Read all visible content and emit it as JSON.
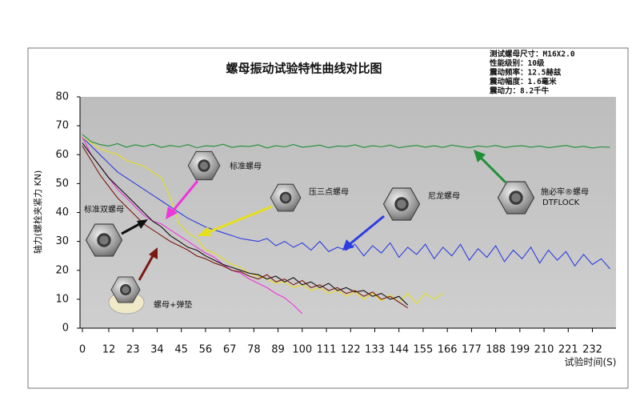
{
  "chart_data": {
    "type": "line",
    "title": "螺母振动试验特性曲线对比图",
    "ylabel": "轴力(螺栓夹紧力 KN)",
    "xlabel": "试验时间(S)",
    "info": [
      "测试螺母尺寸：M16X2.0",
      "性能级别：10级",
      "震动频率：12.5赫兹",
      "震动幅度：1.6毫米",
      "震动力：8.2千牛"
    ],
    "extra_label": "DTFLOCK",
    "xlim": [
      0,
      242
    ],
    "ylim": [
      0,
      80
    ],
    "xticks": [
      0,
      12,
      23,
      34,
      45,
      56,
      67,
      78,
      89,
      100,
      111,
      122,
      133,
      144,
      155,
      166,
      177,
      188,
      199,
      210,
      221,
      232
    ],
    "yticks": [
      0,
      10,
      20,
      30,
      40,
      50,
      60,
      70,
      80
    ],
    "grid": false,
    "series": [
      {
        "name": "施必牢®螺母",
        "color": "#1f8f35",
        "x": [
          0,
          4,
          8,
          12,
          16,
          20,
          24,
          28,
          32,
          36,
          40,
          44,
          48,
          52,
          56,
          60,
          64,
          68,
          72,
          76,
          80,
          84,
          88,
          92,
          96,
          100,
          104,
          108,
          112,
          116,
          120,
          124,
          128,
          132,
          136,
          140,
          144,
          148,
          152,
          156,
          160,
          164,
          168,
          172,
          176,
          180,
          184,
          188,
          192,
          196,
          200,
          204,
          208,
          212,
          216,
          220,
          224,
          228,
          232,
          236,
          240
        ],
        "values": [
          67,
          64.5,
          63.5,
          63,
          63.8,
          62.6,
          63.4,
          62.8,
          63.6,
          62.5,
          63.2,
          62.7,
          63.5,
          62.4,
          63.1,
          62.9,
          63.6,
          62.5,
          63,
          62.8,
          63.4,
          62.3,
          63.1,
          62.7,
          63.5,
          62.6,
          62.9,
          63.3,
          62.4,
          63,
          62.8,
          63.4,
          62.5,
          63.1,
          62.7,
          63.3,
          62.4,
          62.9,
          63.2,
          62.6,
          63.1,
          62.5,
          63.3,
          62.8,
          62.4,
          63,
          62.7,
          63.2,
          62.5,
          62.9,
          63.1,
          62.6,
          63,
          62.4,
          62.8,
          63.2,
          62.5,
          62.9,
          62.3,
          62.7,
          62.6
        ]
      },
      {
        "name": "尼龙螺母",
        "color": "#2b3de0",
        "x": [
          0,
          4,
          8,
          12,
          16,
          20,
          24,
          28,
          32,
          36,
          40,
          44,
          48,
          52,
          56,
          60,
          64,
          68,
          72,
          76,
          80,
          84,
          88,
          92,
          96,
          100,
          104,
          108,
          112,
          116,
          120,
          124,
          128,
          132,
          136,
          140,
          144,
          148,
          152,
          156,
          160,
          164,
          168,
          172,
          176,
          180,
          184,
          188,
          192,
          196,
          200,
          204,
          208,
          212,
          216,
          220,
          224,
          228,
          232,
          236,
          240
        ],
        "values": [
          66,
          63,
          60,
          57,
          54,
          52,
          50,
          48,
          46,
          44,
          42,
          40,
          38,
          36.5,
          35,
          34,
          33,
          32,
          31,
          30.5,
          30,
          31,
          28.5,
          30,
          28,
          29.5,
          27,
          30,
          26.5,
          28,
          27,
          29,
          25,
          28.5,
          26,
          29.5,
          24.5,
          28,
          25.5,
          29,
          24,
          28,
          25,
          29,
          23.5,
          27.5,
          24.5,
          28.5,
          23,
          27,
          24,
          28,
          22.5,
          27,
          23.5,
          26.5,
          21.5,
          25.5,
          22,
          24,
          20.5
        ]
      },
      {
        "name": "压三点螺母",
        "color": "#e6df1c",
        "x": [
          0,
          4,
          8,
          12,
          16,
          20,
          24,
          28,
          32,
          36,
          40,
          44,
          48,
          52,
          56,
          60,
          64,
          68,
          72,
          76,
          80,
          84,
          88,
          92,
          96,
          100,
          104,
          108,
          112,
          116,
          120,
          124,
          128,
          132,
          136,
          140,
          144,
          148,
          152,
          156,
          160,
          164
        ],
        "values": [
          66,
          64,
          62,
          61,
          60,
          58,
          57,
          56,
          54,
          52,
          45,
          36,
          33,
          31,
          27,
          26,
          24,
          22,
          21,
          19,
          18,
          17,
          15.5,
          16,
          14,
          15,
          13,
          14,
          12,
          13,
          11,
          12.5,
          10,
          12,
          9.5,
          11.5,
          9,
          12,
          8.5,
          12,
          10,
          12
        ]
      },
      {
        "name": "标准螺母",
        "color": "#ee35dc",
        "x": [
          0,
          4,
          8,
          12,
          16,
          20,
          24,
          28,
          32,
          36,
          40,
          44,
          48,
          52,
          56,
          60,
          64,
          68,
          72,
          76,
          80,
          84,
          88,
          92,
          96,
          100
        ],
        "values": [
          66,
          60,
          56,
          52,
          48,
          45,
          42,
          39,
          37,
          36,
          34,
          32,
          30,
          28,
          26,
          24.5,
          22,
          20,
          19,
          17,
          15.5,
          14,
          12,
          10.5,
          8,
          5
        ]
      },
      {
        "name": "标准双螺母",
        "color": "#111111",
        "x": [
          0,
          4,
          8,
          12,
          16,
          20,
          24,
          28,
          32,
          36,
          40,
          44,
          48,
          52,
          56,
          60,
          64,
          68,
          72,
          76,
          80,
          84,
          88,
          92,
          96,
          100,
          104,
          108,
          112,
          116,
          120,
          124,
          128,
          132,
          136,
          140,
          144,
          148
        ],
        "values": [
          64,
          60,
          56,
          52,
          49,
          46,
          43,
          40,
          37,
          35,
          32,
          30,
          28,
          27,
          25,
          23.5,
          22,
          21,
          20,
          19,
          18.5,
          17,
          18,
          16,
          17.5,
          15,
          16,
          14,
          15.5,
          13,
          14,
          12.5,
          13,
          11,
          12,
          10,
          11,
          8
        ]
      },
      {
        "name": "螺母+弹垫",
        "color": "#7a1a12",
        "x": [
          0,
          4,
          8,
          12,
          16,
          20,
          24,
          28,
          32,
          36,
          40,
          44,
          48,
          52,
          56,
          60,
          64,
          68,
          72,
          76,
          80,
          84,
          88,
          92,
          96,
          100,
          104,
          108,
          112,
          116,
          120,
          124,
          128,
          132,
          136,
          140,
          144,
          148
        ],
        "values": [
          63,
          58,
          53,
          49,
          45,
          42,
          39,
          36,
          34,
          32,
          30,
          28.5,
          27,
          25,
          24,
          22.5,
          21.5,
          20,
          19.5,
          18,
          17,
          18.5,
          16,
          17,
          15,
          16.5,
          14,
          15,
          13,
          14,
          12,
          13,
          11,
          12.5,
          10,
          11,
          9,
          7
        ]
      }
    ]
  }
}
